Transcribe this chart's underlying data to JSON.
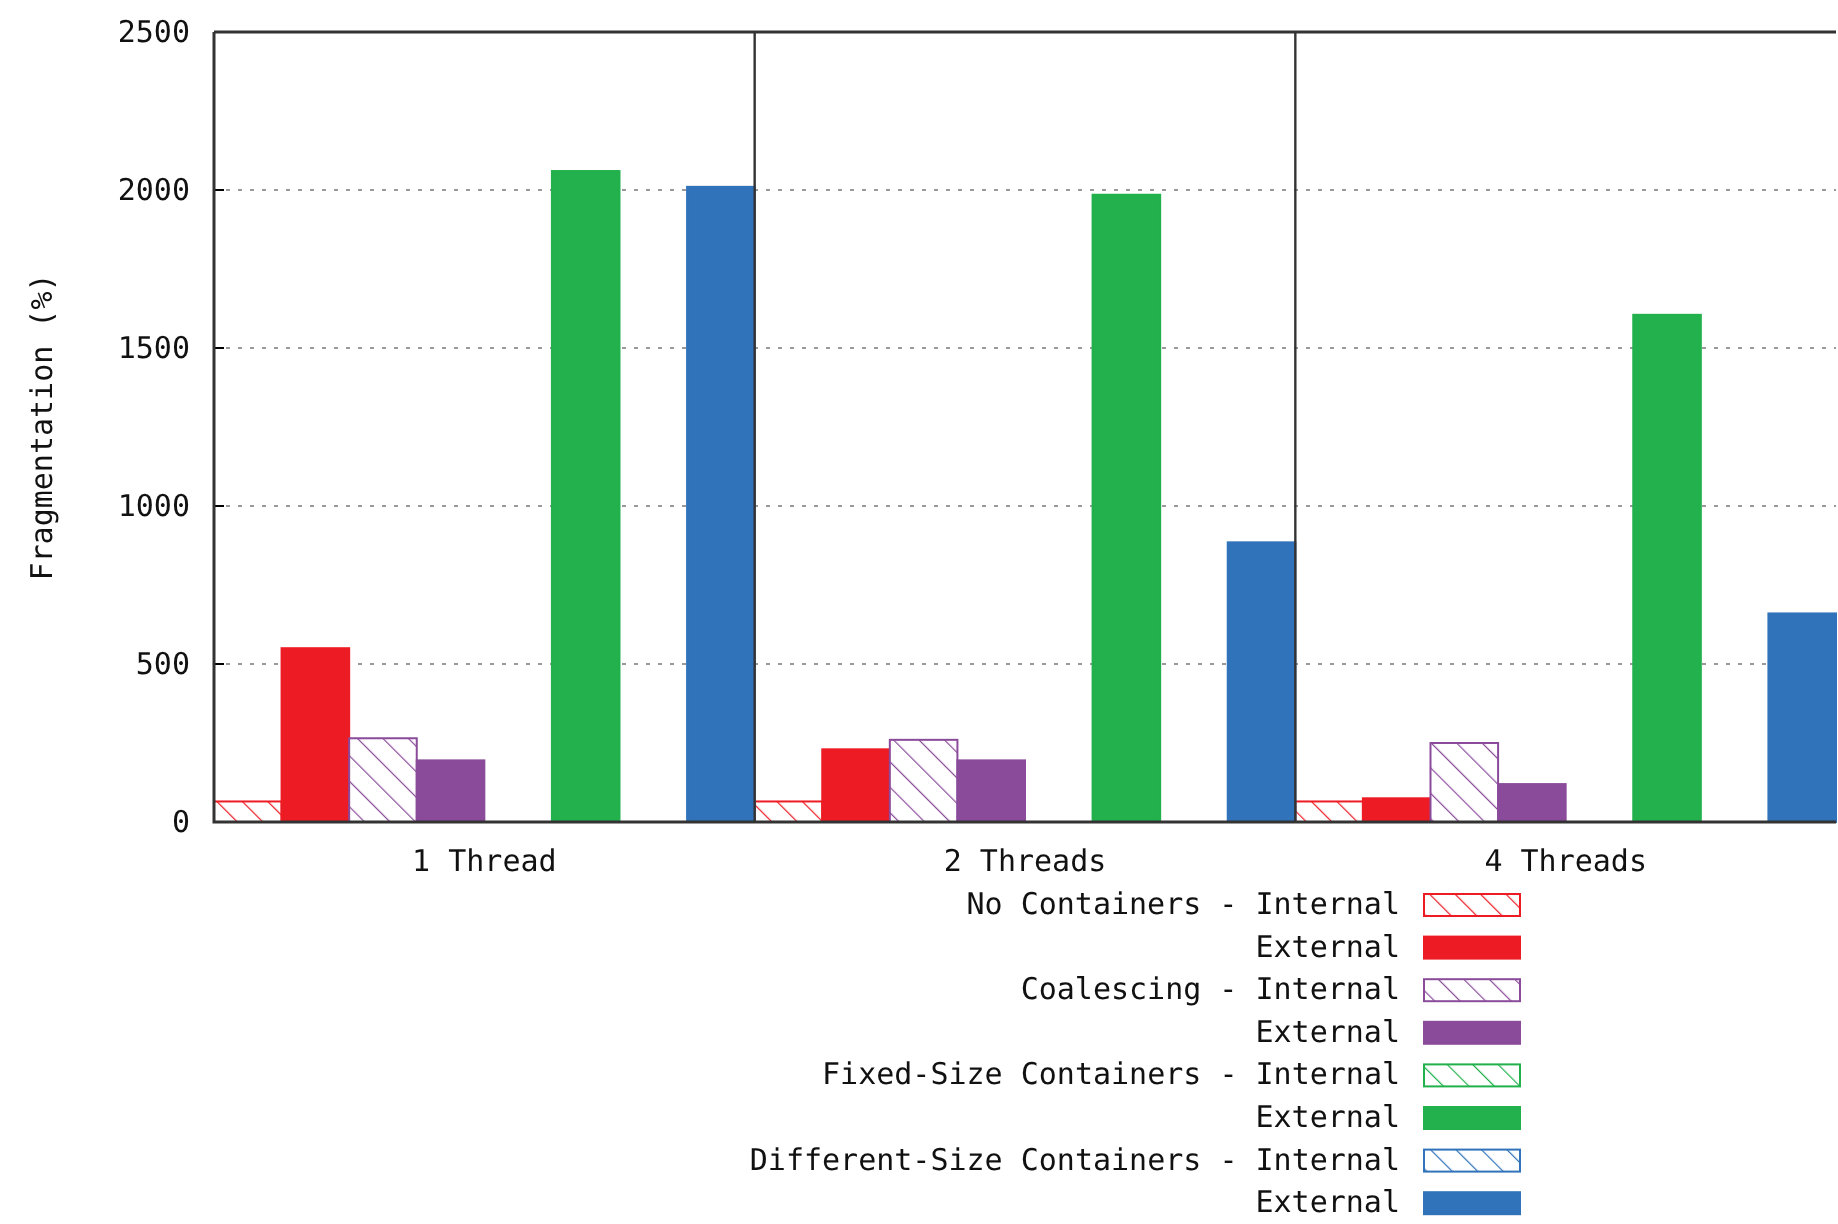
{
  "chart_data": {
    "type": "bar",
    "ylabel": "Fragmentation (%)",
    "categories": [
      "1 Thread",
      "2 Threads",
      "4 Threads"
    ],
    "series": [
      {
        "name": "No Containers - Internal",
        "color": "#ed1c24",
        "values": [
          65,
          65,
          65
        ]
      },
      {
        "name": "External",
        "color": "#ed1c24",
        "values": [
          550,
          230,
          75
        ]
      },
      {
        "name": "Coalescing - Internal",
        "color": "#8b4b9b",
        "values": [
          265,
          260,
          250
        ]
      },
      {
        "name": "External",
        "color": "#8b4b9b",
        "values": [
          195,
          195,
          120
        ]
      },
      {
        "name": "Fixed-Size Containers - Internal",
        "color": "#22b14c",
        "values": [
          0,
          0,
          0
        ]
      },
      {
        "name": "External",
        "color": "#22b14c",
        "values": [
          2060,
          1985,
          1605
        ]
      },
      {
        "name": "Different-Size Containers - Internal",
        "color": "#3173ba",
        "values": [
          0,
          0,
          0
        ]
      },
      {
        "name": "External",
        "color": "#3173ba",
        "values": [
          2010,
          885,
          660
        ]
      }
    ],
    "ylim": [
      0,
      2500
    ],
    "yticks": [
      0,
      500,
      1000,
      1500,
      2000,
      2500
    ],
    "grid": "y",
    "legend": "bottom"
  }
}
